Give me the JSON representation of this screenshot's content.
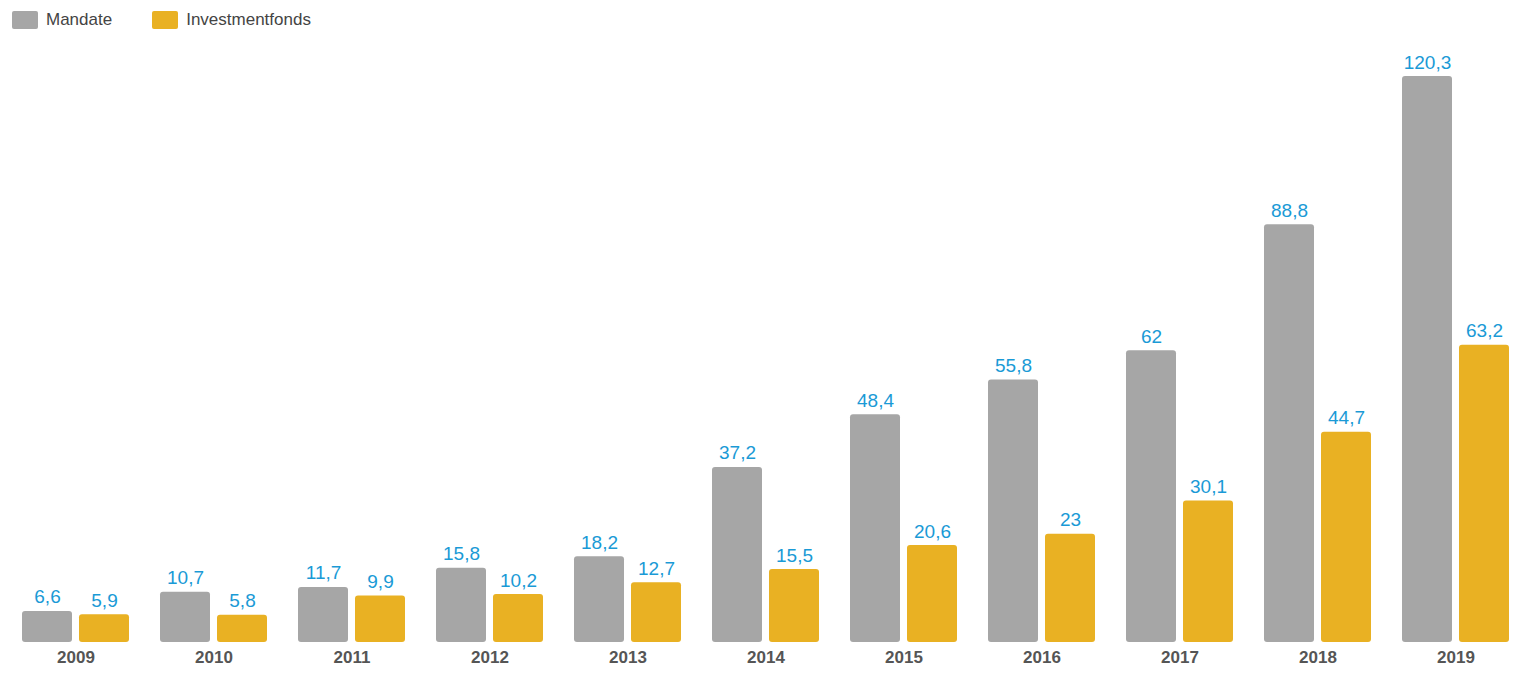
{
  "chart_data": {
    "type": "bar",
    "categories": [
      "2009",
      "2010",
      "2011",
      "2012",
      "2013",
      "2014",
      "2015",
      "2016",
      "2017",
      "2018",
      "2019"
    ],
    "series": [
      {
        "name": "Mandate",
        "color": "#a6a6a6",
        "values": [
          6.6,
          10.7,
          11.7,
          15.8,
          18.2,
          37.2,
          48.4,
          55.8,
          62,
          88.8,
          120.3
        ],
        "value_labels": [
          "6,6",
          "10,7",
          "11,7",
          "15,8",
          "18,2",
          "37,2",
          "48,4",
          "55,8",
          "62",
          "88,8",
          "120,3"
        ]
      },
      {
        "name": "Investmentfonds",
        "color": "#e9b123",
        "values": [
          5.9,
          5.8,
          9.9,
          10.2,
          12.7,
          15.5,
          20.6,
          23,
          30.1,
          44.7,
          63.2
        ],
        "value_labels": [
          "5,9",
          "5,8",
          "9,9",
          "10,2",
          "12,7",
          "15,5",
          "20,6",
          "23",
          "30,1",
          "44,7",
          "63,2"
        ]
      }
    ],
    "data_labels": true,
    "legend": "top-left",
    "tick_labels": "x",
    "grid": false
  }
}
